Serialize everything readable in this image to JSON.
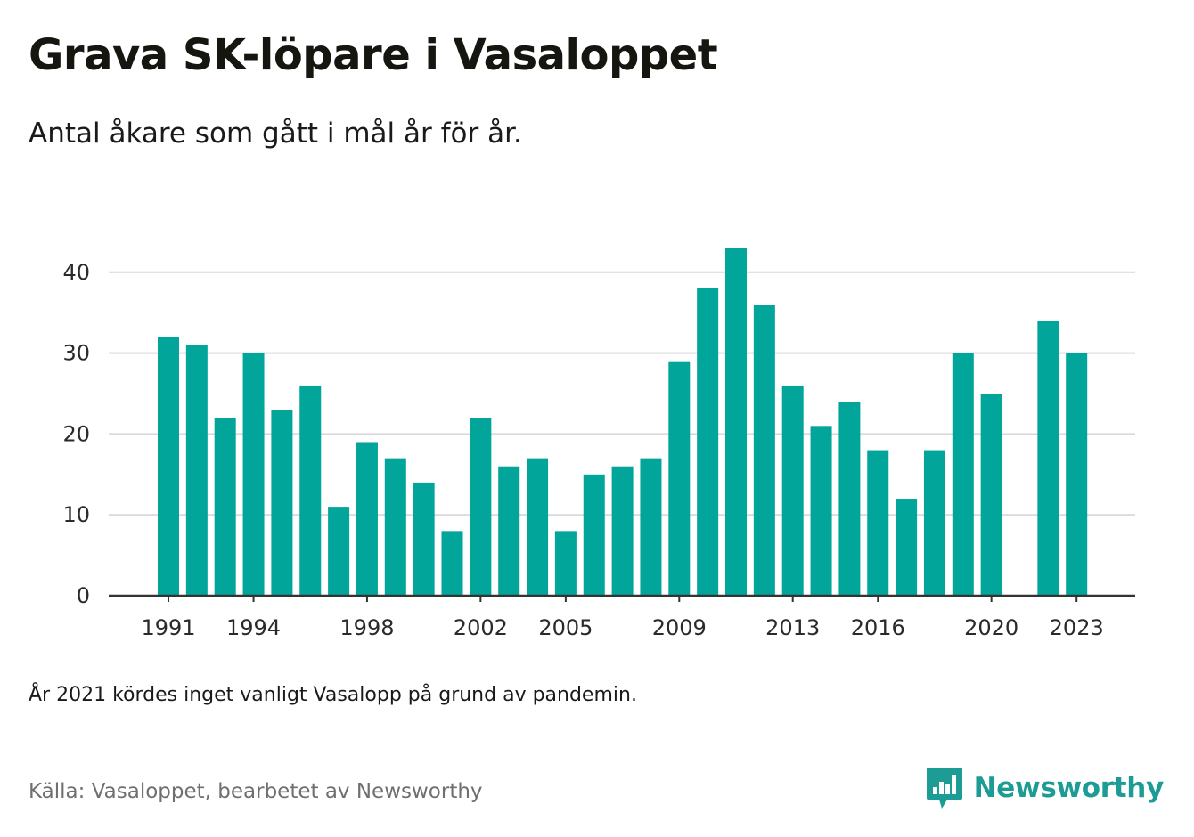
{
  "header": {
    "title": "Grava SK-löpare i Vasaloppet",
    "subtitle": "Antal åkare som gått i mål år för år."
  },
  "footer": {
    "note": "År 2021 kördes inget vanligt Vasalopp på grund av pandemin.",
    "source": "Källa: Vasaloppet, bearbetet av Newsworthy",
    "brand": "Newsworthy"
  },
  "colors": {
    "bar": "#02a59a",
    "brand": "#1d9c95",
    "grid": "#d9d9d9",
    "axis": "#333333"
  },
  "chart_data": {
    "type": "bar",
    "x": [
      1991,
      1992,
      1993,
      1994,
      1995,
      1996,
      1997,
      1998,
      1999,
      2000,
      2001,
      2002,
      2003,
      2004,
      2005,
      2006,
      2007,
      2008,
      2009,
      2010,
      2011,
      2012,
      2013,
      2014,
      2015,
      2016,
      2017,
      2018,
      2019,
      2020,
      2021,
      2022,
      2023
    ],
    "values": [
      32,
      31,
      22,
      30,
      23,
      26,
      11,
      19,
      17,
      14,
      8,
      22,
      16,
      17,
      8,
      15,
      16,
      17,
      29,
      38,
      43,
      36,
      26,
      21,
      24,
      18,
      12,
      18,
      30,
      25,
      null,
      34,
      30
    ],
    "x_tick_labels": [
      1991,
      1994,
      1998,
      2002,
      2005,
      2009,
      2013,
      2016,
      2020,
      2023
    ],
    "y_ticks": [
      0,
      10,
      20,
      30,
      40
    ],
    "ylim": [
      0,
      45
    ],
    "grid": true,
    "legend": "none"
  }
}
